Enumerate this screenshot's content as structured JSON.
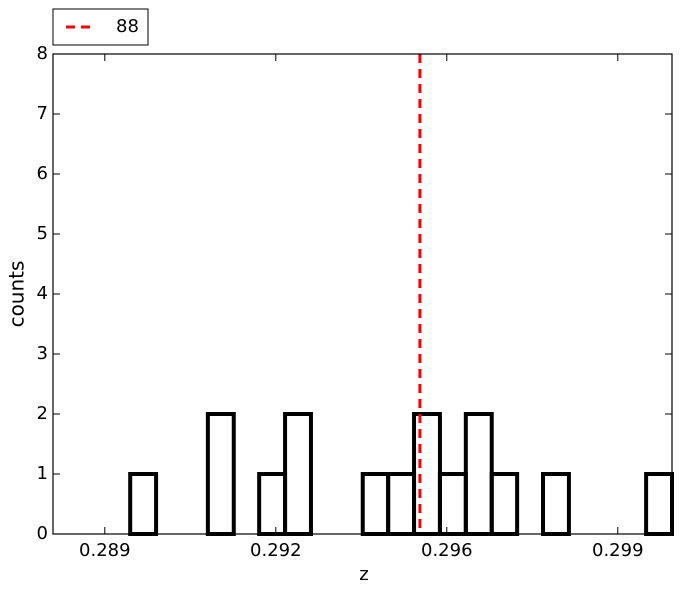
{
  "chart_data": {
    "type": "histogram",
    "xlabel": "z",
    "ylabel": "counts",
    "bins": [
      0.28794,
      0.28847,
      0.289,
      0.28952,
      0.29005,
      0.29058,
      0.29111,
      0.29164,
      0.29216,
      0.29269,
      0.29322,
      0.29375,
      0.29428,
      0.2948,
      0.29533,
      0.29586,
      0.29639,
      0.29692,
      0.29744,
      0.29797,
      0.2985,
      0.29903,
      0.29956,
      0.30008,
      0.30061
    ],
    "values": [
      0,
      0,
      0,
      1,
      0,
      0,
      2,
      0,
      1,
      2,
      0,
      0,
      1,
      1,
      2,
      1,
      2,
      1,
      0,
      1,
      0,
      0,
      0,
      1
    ],
    "color": "#000000",
    "vline": {
      "name": "88",
      "x": 0.29545,
      "color": "#ff0000"
    },
    "xlim": [
      0.28794,
      0.30061
    ],
    "ylim": [
      0,
      8
    ],
    "xticks": [
      {
        "value": 0.289,
        "label": "0.289"
      },
      {
        "value": 0.2925,
        "label": "0.292"
      },
      {
        "value": 0.296,
        "label": "0.296"
      },
      {
        "value": 0.2995,
        "label": "0.299"
      }
    ],
    "yticks": [
      0,
      1,
      2,
      3,
      4,
      5,
      6,
      7,
      8
    ],
    "legend": "upper-left-outside"
  }
}
